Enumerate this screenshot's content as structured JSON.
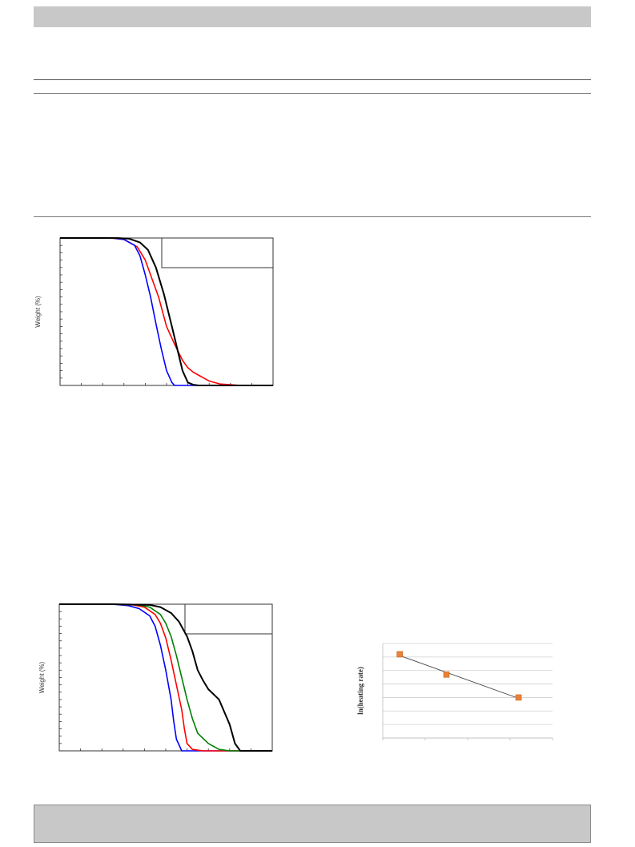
{
  "chart_data": [
    {
      "type": "line",
      "title": "",
      "xlabel": "",
      "ylabel": "Weight (%)",
      "series": [
        {
          "color": "#ff0000",
          "x": [
            0,
            80,
            100,
            120,
            145,
            160,
            185,
            200,
            215,
            230,
            240,
            250,
            260,
            270,
            280,
            300,
            340,
            400
          ],
          "values": [
            100,
            100,
            99.8,
            99,
            94,
            85,
            60,
            40,
            28,
            17,
            12,
            9,
            7,
            5,
            3,
            1,
            0,
            0
          ]
        },
        {
          "color": "#0000ff",
          "x": [
            0,
            80,
            100,
            120,
            140,
            150,
            160,
            170,
            180,
            190,
            200,
            210,
            215,
            230,
            400
          ],
          "values": [
            100,
            100,
            99.9,
            99,
            95,
            88,
            75,
            60,
            42,
            25,
            10,
            2,
            0,
            0,
            0
          ]
        },
        {
          "color": "#008000",
          "x": [
            0,
            80,
            110,
            130,
            150,
            165,
            180,
            195,
            210,
            220,
            230,
            240,
            250,
            260,
            300,
            340
          ],
          "values": [
            100,
            100,
            99.9,
            99.5,
            97,
            92,
            80,
            62,
            40,
            25,
            10,
            2,
            0.5,
            0,
            0,
            0
          ]
        },
        {
          "color": "#000000",
          "x": [
            0,
            80,
            110,
            130,
            150,
            165,
            180,
            195,
            210,
            220,
            230,
            240,
            250,
            260,
            300,
            340,
            400
          ],
          "values": [
            100,
            100,
            99.9,
            99.5,
            97,
            92,
            80,
            62,
            40,
            25,
            10,
            2,
            0.5,
            0,
            0,
            0,
            0
          ]
        }
      ]
    },
    {
      "type": "line",
      "title": "",
      "xlabel": "",
      "ylabel": "Weight (%)",
      "series": [
        {
          "color": "#0000ff",
          "x": [
            0,
            100,
            130,
            150,
            170,
            180,
            190,
            200,
            210,
            215,
            220,
            230,
            250,
            400
          ],
          "values": [
            100,
            100,
            99,
            97,
            92,
            85,
            72,
            55,
            35,
            20,
            8,
            0,
            0,
            0
          ]
        },
        {
          "color": "#ff0000",
          "x": [
            0,
            100,
            140,
            160,
            180,
            190,
            200,
            210,
            220,
            230,
            235,
            240,
            250,
            270,
            400
          ],
          "values": [
            100,
            100,
            99.5,
            98,
            93,
            87,
            77,
            62,
            45,
            28,
            15,
            5,
            1,
            0,
            0
          ]
        },
        {
          "color": "#008000",
          "x": [
            0,
            100,
            150,
            170,
            190,
            200,
            210,
            220,
            230,
            240,
            250,
            260,
            280,
            300,
            320,
            400
          ],
          "values": [
            100,
            100,
            99.5,
            98,
            93,
            87,
            78,
            65,
            50,
            35,
            22,
            12,
            5,
            1,
            0,
            0
          ]
        },
        {
          "color": "#000000",
          "x": [
            0,
            100,
            170,
            190,
            210,
            225,
            240,
            250,
            260,
            270,
            280,
            300,
            320,
            330,
            340,
            400
          ],
          "values": [
            100,
            100,
            99.5,
            98,
            94,
            88,
            78,
            68,
            55,
            48,
            42,
            35,
            18,
            5,
            0,
            0
          ]
        }
      ]
    },
    {
      "type": "scatter",
      "title": "",
      "xlabel": "",
      "ylabel": "ln(heating rate)",
      "x": [
        1,
        2.1,
        3.8
      ],
      "values": [
        6.2,
        4.7,
        3.0
      ],
      "ylim": [
        0,
        7
      ],
      "xlim": [
        0.6,
        4.6
      ],
      "marker_color": "#e8823a",
      "trendline": true
    }
  ]
}
